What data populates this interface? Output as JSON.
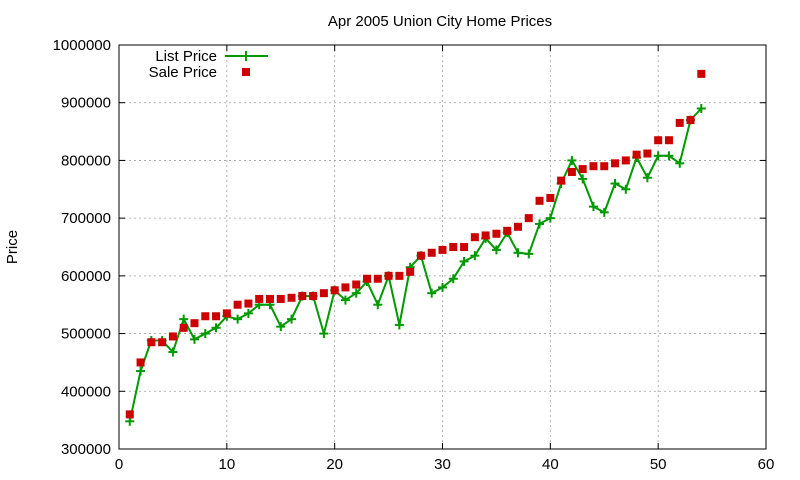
{
  "chart_data": {
    "type": "line",
    "title": "Apr 2005 Union City Home Prices",
    "xlabel": "",
    "ylabel": "Price",
    "xlim": [
      0,
      60
    ],
    "ylim": [
      300000,
      1000000
    ],
    "xticks": [
      0,
      10,
      20,
      30,
      40,
      50,
      60
    ],
    "yticks": [
      300000,
      400000,
      500000,
      600000,
      700000,
      800000,
      900000,
      1000000
    ],
    "grid": true,
    "legend_position": "top-left",
    "series": [
      {
        "name": "List Price",
        "style": "line-with-plus-markers",
        "color": "#009900",
        "x": [
          1,
          2,
          3,
          4,
          5,
          6,
          7,
          8,
          9,
          10,
          11,
          12,
          13,
          14,
          15,
          16,
          17,
          18,
          19,
          20,
          21,
          22,
          23,
          24,
          25,
          26,
          27,
          28,
          29,
          30,
          31,
          32,
          33,
          34,
          35,
          36,
          37,
          38,
          39,
          40,
          41,
          42,
          43,
          44,
          45,
          46,
          47,
          48,
          49,
          50,
          51,
          52,
          53,
          54
        ],
        "y": [
          348000,
          435000,
          488000,
          488000,
          468000,
          525000,
          490000,
          500000,
          510000,
          530000,
          525000,
          535000,
          550000,
          550000,
          512000,
          525000,
          565000,
          565000,
          500000,
          575000,
          558000,
          570000,
          590000,
          550000,
          600000,
          515000,
          615000,
          635000,
          570000,
          580000,
          595000,
          625000,
          635000,
          665000,
          645000,
          675000,
          640000,
          638000,
          690000,
          700000,
          760000,
          800000,
          768000,
          720000,
          710000,
          760000,
          750000,
          805000,
          770000,
          808000,
          808000,
          795000,
          870000,
          890000
        ]
      },
      {
        "name": "Sale Price",
        "style": "square-markers",
        "color": "#cc0000",
        "x": [
          1,
          2,
          3,
          4,
          5,
          6,
          7,
          8,
          9,
          10,
          11,
          12,
          13,
          14,
          15,
          16,
          17,
          18,
          19,
          20,
          21,
          22,
          23,
          24,
          25,
          26,
          27,
          28,
          29,
          30,
          31,
          32,
          33,
          34,
          35,
          36,
          37,
          38,
          39,
          40,
          41,
          42,
          43,
          44,
          45,
          46,
          47,
          48,
          49,
          50,
          51,
          52,
          53,
          54
        ],
        "y": [
          360000,
          450000,
          485000,
          485000,
          495000,
          510000,
          518000,
          530000,
          530000,
          535000,
          550000,
          552000,
          560000,
          560000,
          560000,
          562000,
          565000,
          565000,
          570000,
          575000,
          580000,
          585000,
          595000,
          595000,
          600000,
          600000,
          607000,
          635000,
          640000,
          645000,
          650000,
          650000,
          667000,
          670000,
          673000,
          678000,
          685000,
          700000,
          730000,
          735000,
          765000,
          780000,
          785000,
          790000,
          790000,
          795000,
          800000,
          810000,
          812000,
          835000,
          835000,
          865000,
          870000,
          950000
        ]
      }
    ]
  }
}
